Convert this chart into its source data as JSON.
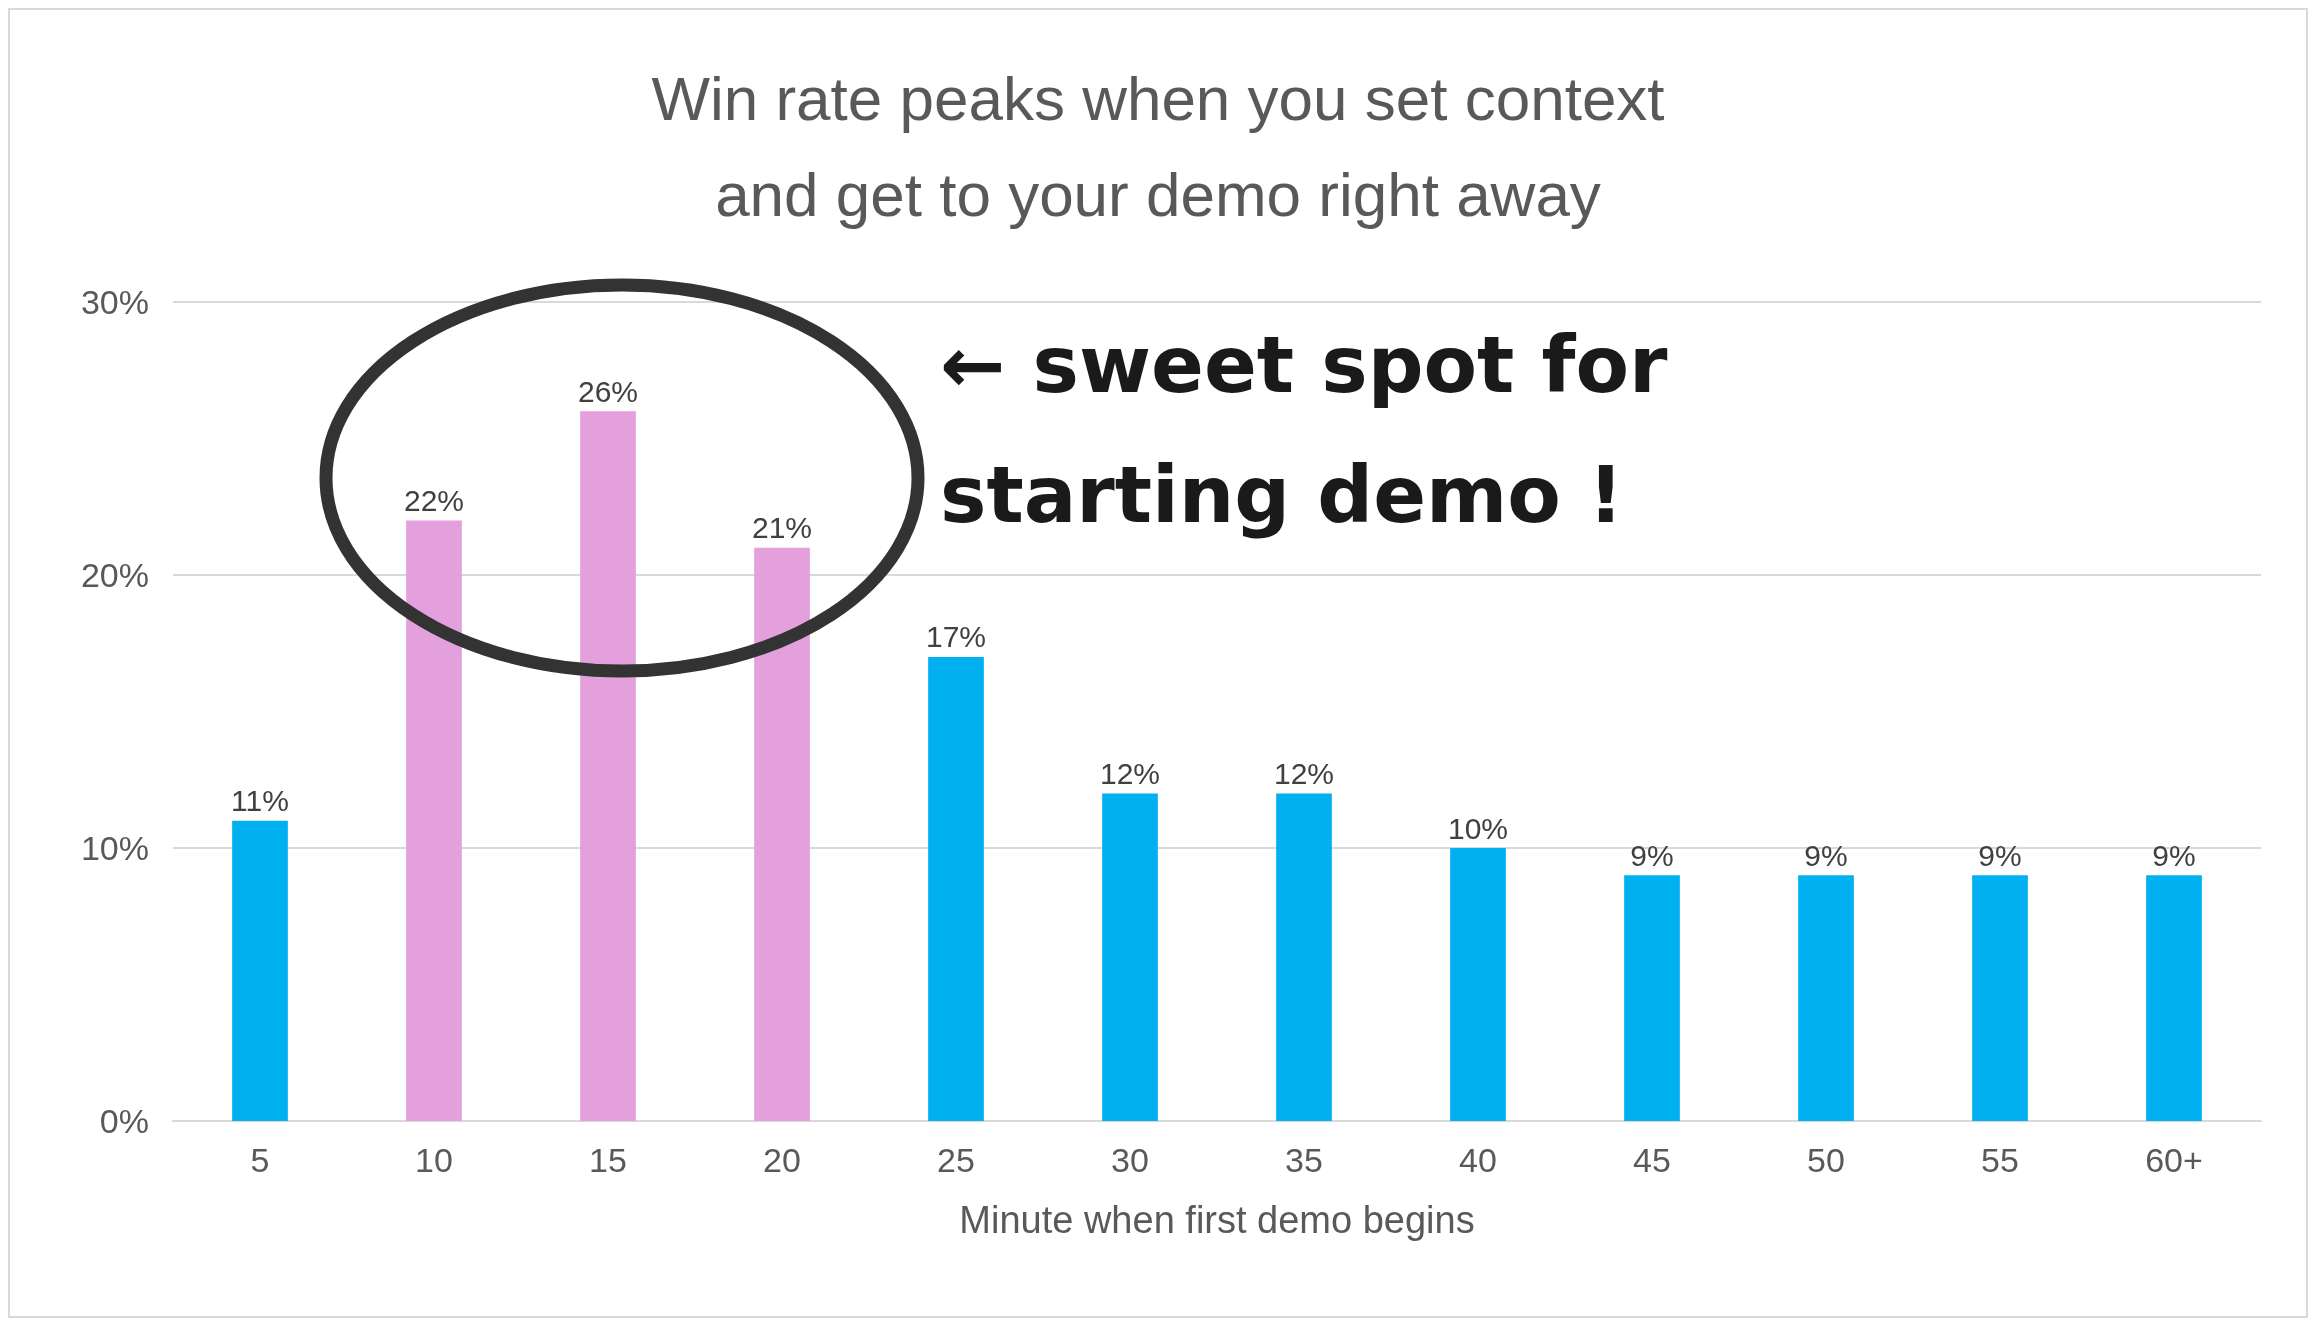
{
  "chart_data": {
    "type": "bar",
    "title": "Win rate peaks when you set context\nand get to your demo right away",
    "xlabel": "Minute when first demo begins",
    "categories": [
      "5",
      "10",
      "15",
      "20",
      "25",
      "30",
      "35",
      "40",
      "45",
      "50",
      "55",
      "60+"
    ],
    "values": [
      11,
      22,
      26,
      21,
      17,
      12,
      12,
      10,
      9,
      9,
      9,
      9
    ],
    "colors": [
      "#00b0f0",
      "#e3a0dc",
      "#e3a0dc",
      "#e3a0dc",
      "#00b0f0",
      "#00b0f0",
      "#00b0f0",
      "#00b0f0",
      "#00b0f0",
      "#00b0f0",
      "#00b0f0",
      "#00b0f0"
    ],
    "value_labels": [
      "11%",
      "22%",
      "26%",
      "21%",
      "17%",
      "12%",
      "12%",
      "10%",
      "9%",
      "9%",
      "9%",
      "9%"
    ],
    "ylim": [
      0,
      30
    ],
    "yticks": [
      {
        "value": 0,
        "label": "0%"
      },
      {
        "value": 10,
        "label": "10%"
      },
      {
        "value": 20,
        "label": "20%"
      },
      {
        "value": 30,
        "label": "30%"
      }
    ],
    "grid": "y",
    "annotations": [
      "← sweet spot for\nstarting demo !"
    ]
  }
}
